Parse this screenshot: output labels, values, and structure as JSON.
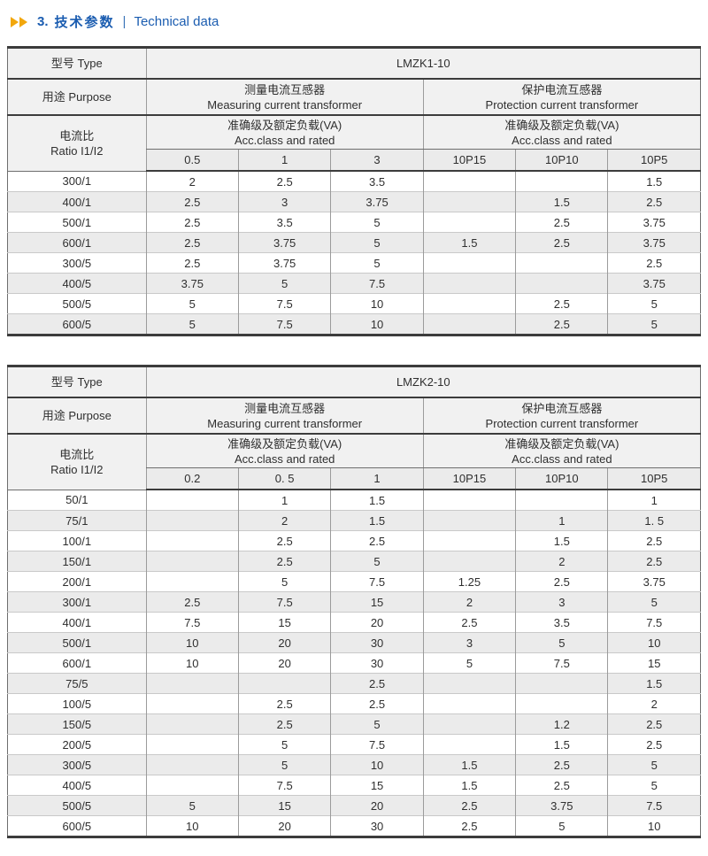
{
  "header": {
    "section_number": "3.",
    "title_zh": "技术参数",
    "separator": "|",
    "title_en": "Technical data"
  },
  "labels": {
    "type": "型号 Type",
    "purpose": "用途 Purpose",
    "ratio_zh": "电流比",
    "ratio_en": "Ratio I1/I2",
    "measuring_zh": "测量电流互感器",
    "measuring_en": "Measuring current transformer",
    "protection_zh": "保护电流互感器",
    "protection_en": "Protection current transformer",
    "acc_class_zh": "准确级及额定负载(VA)",
    "acc_class_en": "Acc.class and rated"
  },
  "colors": {
    "arrow_accent": "#F2A70C",
    "title_blue": "#1A5CB0",
    "stripe_gray": "#EBEBEB",
    "header_gray": "#F1F1F1",
    "border_dark": "#3C3C3C",
    "border_light": "#9B9B9B"
  },
  "tables": [
    {
      "model": "LMZK1-10",
      "measuring_classes": [
        "0.5",
        "1",
        "3"
      ],
      "protection_classes": [
        "10P15",
        "10P10",
        "10P5"
      ],
      "rows": [
        {
          "ratio": "300/1",
          "values": [
            "2",
            "2.5",
            "3.5",
            "",
            "",
            "1.5"
          ]
        },
        {
          "ratio": "400/1",
          "values": [
            "2.5",
            "3",
            "3.75",
            "",
            "1.5",
            "2.5"
          ]
        },
        {
          "ratio": "500/1",
          "values": [
            "2.5",
            "3.5",
            "5",
            "",
            "2.5",
            "3.75"
          ]
        },
        {
          "ratio": "600/1",
          "values": [
            "2.5",
            "3.75",
            "5",
            "1.5",
            "2.5",
            "3.75"
          ]
        },
        {
          "ratio": "300/5",
          "values": [
            "2.5",
            "3.75",
            "5",
            "",
            "",
            "2.5"
          ]
        },
        {
          "ratio": "400/5",
          "values": [
            "3.75",
            "5",
            "7.5",
            "",
            "",
            "3.75"
          ]
        },
        {
          "ratio": "500/5",
          "values": [
            "5",
            "7.5",
            "10",
            "",
            "2.5",
            "5"
          ]
        },
        {
          "ratio": "600/5",
          "values": [
            "5",
            "7.5",
            "10",
            "",
            "2.5",
            "5"
          ]
        }
      ]
    },
    {
      "model": "LMZK2-10",
      "measuring_classes": [
        "0.2",
        "0. 5",
        "1"
      ],
      "protection_classes": [
        "10P15",
        "10P10",
        "10P5"
      ],
      "rows": [
        {
          "ratio": "50/1",
          "values": [
            "",
            "1",
            "1.5",
            "",
            "",
            "1"
          ]
        },
        {
          "ratio": "75/1",
          "values": [
            "",
            "2",
            "1.5",
            "",
            "1",
            "1. 5"
          ]
        },
        {
          "ratio": "100/1",
          "values": [
            "",
            "2.5",
            "2.5",
            "",
            "1.5",
            "2.5"
          ]
        },
        {
          "ratio": "150/1",
          "values": [
            "",
            "2.5",
            "5",
            "",
            "2",
            "2.5"
          ]
        },
        {
          "ratio": "200/1",
          "values": [
            "",
            "5",
            "7.5",
            "1.25",
            "2.5",
            "3.75"
          ]
        },
        {
          "ratio": "300/1",
          "values": [
            "2.5",
            "7.5",
            "15",
            "2",
            "3",
            "5"
          ]
        },
        {
          "ratio": "400/1",
          "values": [
            "7.5",
            "15",
            "20",
            "2.5",
            "3.5",
            "7.5"
          ]
        },
        {
          "ratio": "500/1",
          "values": [
            "10",
            "20",
            "30",
            "3",
            "5",
            "10"
          ]
        },
        {
          "ratio": "600/1",
          "values": [
            "10",
            "20",
            "30",
            "5",
            "7.5",
            "15"
          ]
        },
        {
          "ratio": "75/5",
          "values": [
            "",
            "",
            "2.5",
            "",
            "",
            "1.5"
          ]
        },
        {
          "ratio": "100/5",
          "values": [
            "",
            "2.5",
            "2.5",
            "",
            "",
            "2"
          ]
        },
        {
          "ratio": "150/5",
          "values": [
            "",
            "2.5",
            "5",
            "",
            "1.2",
            "2.5"
          ]
        },
        {
          "ratio": "200/5",
          "values": [
            "",
            "5",
            "7.5",
            "",
            "1.5",
            "2.5"
          ]
        },
        {
          "ratio": "300/5",
          "values": [
            "",
            "5",
            "10",
            "1.5",
            "2.5",
            "5"
          ]
        },
        {
          "ratio": "400/5",
          "values": [
            "",
            "7.5",
            "15",
            "1.5",
            "2.5",
            "5"
          ]
        },
        {
          "ratio": "500/5",
          "values": [
            "5",
            "15",
            "20",
            "2.5",
            "3.75",
            "7.5"
          ]
        },
        {
          "ratio": "600/5",
          "values": [
            "10",
            "20",
            "30",
            "2.5",
            "5",
            "10"
          ]
        }
      ]
    }
  ]
}
